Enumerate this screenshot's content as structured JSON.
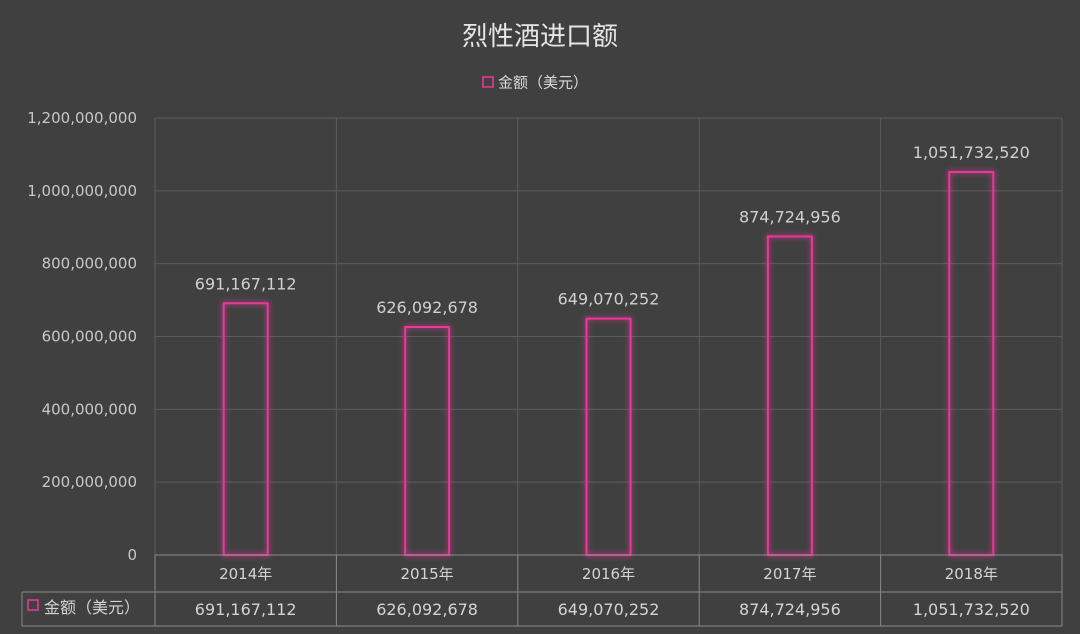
{
  "chart_data": {
    "type": "bar",
    "title": "烈性酒进口额",
    "categories": [
      "2014年",
      "2015年",
      "2016年",
      "2017年",
      "2018年"
    ],
    "series": [
      {
        "name": "金额（美元）",
        "values": [
          691167112,
          626092678,
          649070252,
          874724956,
          1051732520
        ],
        "labels": [
          "691,167,112",
          "626,092,678",
          "649,070,252",
          "874,724,956",
          "1,051,732,520"
        ]
      }
    ],
    "ylim": [
      0,
      1200000000
    ],
    "yticks": [
      "0",
      "200,000,000",
      "400,000,000",
      "600,000,000",
      "800,000,000",
      "1,000,000,000",
      "1,200,000,000"
    ],
    "grid": true,
    "legend": "top-center",
    "data_table": true,
    "colors": {
      "background": "#404040",
      "bar": "#e8399a"
    }
  }
}
